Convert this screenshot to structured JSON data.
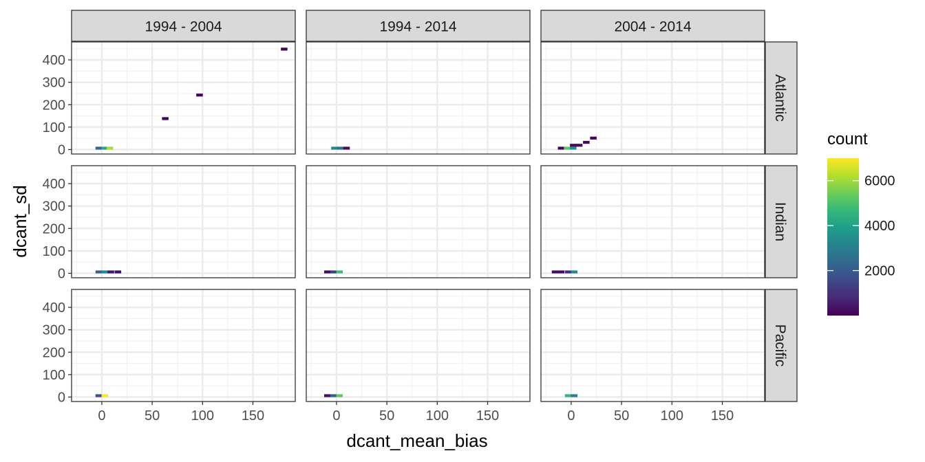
{
  "chart_data": {
    "type": "heatmap",
    "xlabel": "dcant_mean_bias",
    "ylabel": "dcant_sd",
    "xlim": [
      -30,
      192
    ],
    "ylim": [
      -20,
      480
    ],
    "x_ticks": [
      0,
      50,
      100,
      150
    ],
    "y_ticks": [
      0,
      100,
      200,
      300,
      400
    ],
    "col_facets": [
      "1994 - 2004",
      "1994 - 2014",
      "2004 - 2014"
    ],
    "row_facets": [
      "Atlantic",
      "Indian",
      "Pacific"
    ],
    "bin_width_x": 6.5,
    "bin_height_y": 13,
    "legend": {
      "title": "count",
      "position": "right",
      "min": 0,
      "max": 7000,
      "breaks": [
        2000,
        4000,
        6000
      ],
      "colors": [
        "#440154",
        "#482878",
        "#3e4a89",
        "#31688e",
        "#26828e",
        "#1f9e89",
        "#35b779",
        "#6dcd59",
        "#b4de2c",
        "#fde725"
      ]
    },
    "panels": [
      {
        "col": "1994 - 2004",
        "row": "Atlantic",
        "bins": [
          {
            "x": -3,
            "y": 6,
            "count": 2300
          },
          {
            "x": 3,
            "y": 6,
            "count": 4200
          },
          {
            "x": 8,
            "y": 6,
            "count": 6100
          },
          {
            "x": 63,
            "y": 138,
            "count": 80
          },
          {
            "x": 97,
            "y": 243,
            "count": 80
          },
          {
            "x": 181,
            "y": 448,
            "count": 80
          }
        ]
      },
      {
        "col": "1994 - 2014",
        "row": "Atlantic",
        "bins": [
          {
            "x": -2,
            "y": 6,
            "count": 3300
          },
          {
            "x": 4,
            "y": 6,
            "count": 2700
          },
          {
            "x": 10,
            "y": 6,
            "count": 300
          }
        ]
      },
      {
        "col": "2004 - 2014",
        "row": "Atlantic",
        "bins": [
          {
            "x": -10,
            "y": 6,
            "count": 120
          },
          {
            "x": -4,
            "y": 6,
            "count": 5200
          },
          {
            "x": 2,
            "y": 6,
            "count": 3500
          },
          {
            "x": 2,
            "y": 19,
            "count": 200
          },
          {
            "x": 8,
            "y": 19,
            "count": 200
          },
          {
            "x": 15,
            "y": 32,
            "count": 150
          },
          {
            "x": 22,
            "y": 51,
            "count": 100
          }
        ]
      },
      {
        "col": "1994 - 2004",
        "row": "Indian",
        "bins": [
          {
            "x": -3,
            "y": 6,
            "count": 2200
          },
          {
            "x": 3,
            "y": 6,
            "count": 3300
          },
          {
            "x": 9,
            "y": 6,
            "count": 400
          },
          {
            "x": 16,
            "y": 6,
            "count": 300
          }
        ]
      },
      {
        "col": "1994 - 2014",
        "row": "Indian",
        "bins": [
          {
            "x": -9,
            "y": 6,
            "count": 200
          },
          {
            "x": -3,
            "y": 6,
            "count": 1300
          },
          {
            "x": 3,
            "y": 6,
            "count": 4800
          }
        ]
      },
      {
        "col": "2004 - 2014",
        "row": "Indian",
        "bins": [
          {
            "x": -16,
            "y": 6,
            "count": 200
          },
          {
            "x": -10,
            "y": 6,
            "count": 200
          },
          {
            "x": -3,
            "y": 6,
            "count": 900
          },
          {
            "x": 3,
            "y": 6,
            "count": 3300
          }
        ]
      },
      {
        "col": "1994 - 2004",
        "row": "Pacific",
        "bins": [
          {
            "x": -3,
            "y": 6,
            "count": 1800
          },
          {
            "x": 3,
            "y": 6,
            "count": 7000
          }
        ]
      },
      {
        "col": "1994 - 2014",
        "row": "Pacific",
        "bins": [
          {
            "x": -9,
            "y": 6,
            "count": 300
          },
          {
            "x": -3,
            "y": 6,
            "count": 2200
          },
          {
            "x": 3,
            "y": 6,
            "count": 5300
          }
        ]
      },
      {
        "col": "2004 - 2014",
        "row": "Pacific",
        "bins": [
          {
            "x": -3,
            "y": 6,
            "count": 4600
          },
          {
            "x": 3,
            "y": 6,
            "count": 3100
          }
        ]
      }
    ]
  }
}
